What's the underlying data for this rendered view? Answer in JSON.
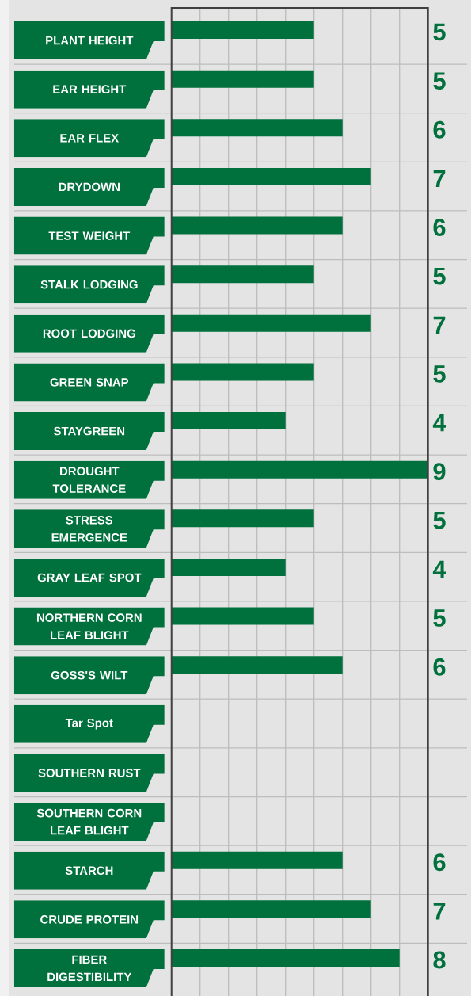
{
  "chart_data": {
    "type": "bar",
    "orientation": "horizontal",
    "categories": [
      "PLANT HEIGHT",
      "EAR HEIGHT",
      "EAR FLEX",
      "DRYDOWN",
      "TEST WEIGHT",
      "STALK LODGING",
      "ROOT LODGING",
      "GREEN SNAP",
      "STAYGREEN",
      "DROUGHT TOLERANCE",
      "STRESS EMERGENCE",
      "GRAY LEAF SPOT",
      "NORTHERN CORN LEAF BLIGHT",
      "GOSS'S WILT",
      "Tar Spot",
      "SOUTHERN RUST",
      "SOUTHERN CORN LEAF BLIGHT",
      "STARCH",
      "CRUDE PROTEIN",
      "FIBER DIGESTIBILITY"
    ],
    "values": [
      5,
      5,
      6,
      7,
      6,
      5,
      7,
      5,
      4,
      9,
      5,
      4,
      5,
      6,
      null,
      null,
      null,
      6,
      7,
      8
    ],
    "color": "#00703c",
    "xlim": [
      0,
      9
    ],
    "xticks": [
      {
        "value": 0,
        "label": null
      },
      {
        "value": 1,
        "label": null
      },
      {
        "value": 2,
        "label": null
      },
      {
        "value": 3,
        "label": null
      },
      {
        "value": 4,
        "label": null
      },
      {
        "value": 5,
        "label": null
      },
      {
        "value": 6,
        "label": null
      },
      {
        "value": 7,
        "label": null
      },
      {
        "value": 8,
        "label": null
      },
      {
        "value": 9,
        "label": null
      }
    ],
    "grid": true,
    "tick_labels": "y",
    "data_labels": true
  }
}
